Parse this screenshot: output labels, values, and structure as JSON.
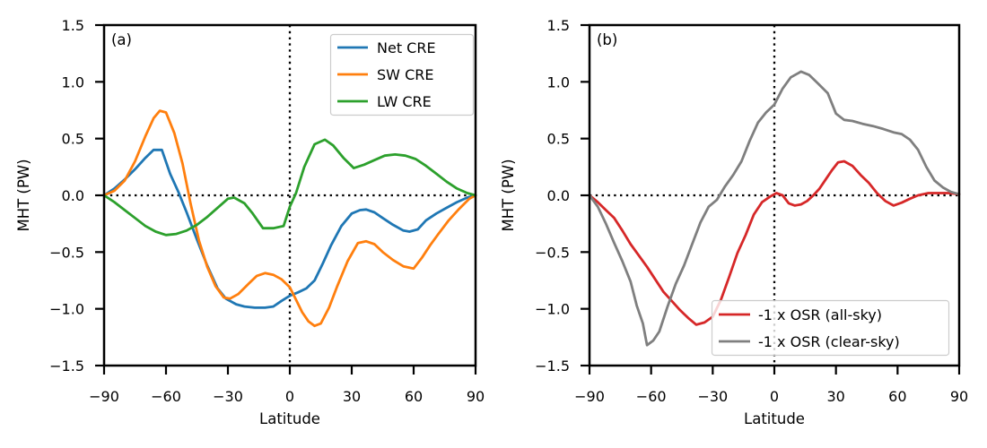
{
  "figure": {
    "background": "#ffffff",
    "frame_color": "#000000",
    "zero_line_color": "#000000",
    "legend_border_color": "#cccccc"
  },
  "chart_data": [
    {
      "type": "line",
      "panel_label": "(a)",
      "xlabel": "Latitude",
      "ylabel": "MHT (PW)",
      "xlim": [
        -90,
        90
      ],
      "ylim": [
        -1.5,
        1.5
      ],
      "grid": false,
      "zero_lines": {
        "horizontal_y": 0,
        "vertical_x": 0,
        "style": "dotted"
      },
      "legend_position": "upper right",
      "x_ticks": {
        "values": [
          -90,
          -60,
          -30,
          0,
          30,
          60,
          90
        ],
        "labels": [
          "−90",
          "−60",
          "−30",
          "0",
          "30",
          "60",
          "90"
        ]
      },
      "y_ticks": {
        "values": [
          1.5,
          1.0,
          0.5,
          0.0,
          -0.5,
          -1.0,
          -1.5
        ],
        "labels": [
          "1.5",
          "1.0",
          "0.5",
          "0.0",
          "−0.5",
          "−1.0",
          "−1.5"
        ]
      },
      "series": [
        {
          "name": "Net CRE",
          "color": "#1f77b4",
          "x": [
            -90,
            -85,
            -80,
            -75,
            -70,
            -66,
            -62,
            -58,
            -54,
            -50,
            -45,
            -40,
            -35,
            -31,
            -26,
            -22,
            -17,
            -12,
            -8,
            -4,
            0,
            4,
            8,
            12,
            16,
            20,
            25,
            30,
            34,
            37,
            41,
            45,
            50,
            55,
            58,
            62,
            66,
            71,
            76,
            81,
            86,
            90
          ],
          "y": [
            0.0,
            0.06,
            0.14,
            0.23,
            0.33,
            0.4,
            0.4,
            0.19,
            0.03,
            -0.15,
            -0.39,
            -0.62,
            -0.82,
            -0.91,
            -0.96,
            -0.98,
            -0.99,
            -0.99,
            -0.98,
            -0.93,
            -0.885,
            -0.855,
            -0.82,
            -0.75,
            -0.6,
            -0.44,
            -0.27,
            -0.16,
            -0.13,
            -0.125,
            -0.15,
            -0.2,
            -0.26,
            -0.31,
            -0.32,
            -0.3,
            -0.22,
            -0.16,
            -0.11,
            -0.06,
            -0.02,
            0.0
          ]
        },
        {
          "name": "SW CRE",
          "color": "#ff7f0e",
          "x": [
            -90,
            -85,
            -80,
            -75,
            -70,
            -66,
            -63,
            -60,
            -56,
            -52,
            -48,
            -44,
            -40,
            -36,
            -32,
            -29,
            -25,
            -20,
            -16,
            -12,
            -8,
            -4,
            0,
            3,
            6,
            9,
            12,
            15,
            19,
            23,
            28,
            33,
            37,
            41,
            45,
            50,
            55,
            60,
            64,
            68,
            72,
            77,
            82,
            87,
            90
          ],
          "y": [
            0.0,
            0.04,
            0.13,
            0.3,
            0.52,
            0.68,
            0.745,
            0.73,
            0.55,
            0.28,
            -0.08,
            -0.4,
            -0.63,
            -0.8,
            -0.9,
            -0.91,
            -0.87,
            -0.78,
            -0.71,
            -0.685,
            -0.7,
            -0.74,
            -0.81,
            -0.92,
            -1.03,
            -1.11,
            -1.15,
            -1.13,
            -0.99,
            -0.8,
            -0.58,
            -0.42,
            -0.405,
            -0.43,
            -0.5,
            -0.57,
            -0.625,
            -0.645,
            -0.55,
            -0.44,
            -0.34,
            -0.22,
            -0.12,
            -0.03,
            0.0
          ]
        },
        {
          "name": "LW CRE",
          "color": "#2ca02c",
          "x": [
            -90,
            -85,
            -80,
            -75,
            -70,
            -65,
            -60,
            -55,
            -50,
            -45,
            -40,
            -35,
            -30,
            -27,
            -22,
            -18,
            -13,
            -8,
            -3,
            0,
            3,
            7,
            12,
            17,
            21,
            26,
            31,
            36,
            41,
            46,
            51,
            56,
            61,
            66,
            71,
            76,
            81,
            86,
            90
          ],
          "y": [
            0.0,
            -0.06,
            -0.13,
            -0.2,
            -0.27,
            -0.32,
            -0.35,
            -0.34,
            -0.31,
            -0.26,
            -0.19,
            -0.11,
            -0.03,
            -0.02,
            -0.07,
            -0.16,
            -0.29,
            -0.29,
            -0.27,
            -0.1,
            0.02,
            0.25,
            0.45,
            0.49,
            0.44,
            0.33,
            0.24,
            0.27,
            0.31,
            0.35,
            0.36,
            0.35,
            0.32,
            0.26,
            0.19,
            0.12,
            0.06,
            0.02,
            0.0
          ]
        }
      ]
    },
    {
      "type": "line",
      "panel_label": "(b)",
      "xlabel": "Latitude",
      "ylabel": "MHT (PW)",
      "xlim": [
        -90,
        90
      ],
      "ylim": [
        -1.5,
        1.5
      ],
      "grid": false,
      "zero_lines": {
        "horizontal_y": 0,
        "vertical_x": 0,
        "style": "dotted"
      },
      "legend_position": "lower right",
      "x_ticks": {
        "values": [
          -90,
          -60,
          -30,
          0,
          30,
          60,
          90
        ],
        "labels": [
          "−90",
          "−60",
          "−30",
          "0",
          "30",
          "60",
          "90"
        ]
      },
      "y_ticks": {
        "values": [
          1.5,
          1.0,
          0.5,
          0.0,
          -0.5,
          -1.0,
          -1.5
        ],
        "labels": [
          "1.5",
          "1.0",
          "0.5",
          "0.0",
          "−0.5",
          "−1.0",
          "−1.5"
        ]
      },
      "series": [
        {
          "name": "-1 x OSR (all-sky)",
          "color": "#d62728",
          "x": [
            -90,
            -86,
            -82,
            -78,
            -74,
            -70,
            -66,
            -62,
            -58,
            -54,
            -50,
            -46,
            -42,
            -38,
            -34,
            -30,
            -26,
            -22,
            -18,
            -14,
            -10,
            -6,
            -2,
            1,
            4,
            7,
            10,
            13,
            16,
            19,
            22,
            25,
            28,
            31,
            34,
            38,
            42,
            46,
            50,
            54,
            58,
            62,
            66,
            70,
            75,
            80,
            85,
            90
          ],
          "y": [
            0.0,
            -0.06,
            -0.13,
            -0.2,
            -0.31,
            -0.43,
            -0.53,
            -0.63,
            -0.74,
            -0.85,
            -0.93,
            -1.01,
            -1.08,
            -1.14,
            -1.12,
            -1.07,
            -0.92,
            -0.72,
            -0.51,
            -0.35,
            -0.17,
            -0.06,
            -0.01,
            0.02,
            0.0,
            -0.07,
            -0.09,
            -0.08,
            -0.05,
            0.0,
            0.06,
            0.14,
            0.22,
            0.29,
            0.3,
            0.26,
            0.18,
            0.11,
            0.02,
            -0.05,
            -0.09,
            -0.065,
            -0.03,
            0.0,
            0.02,
            0.02,
            0.02,
            0.01
          ]
        },
        {
          "name": "-1 x OSR (clear-sky)",
          "color": "#7f7f7f",
          "x": [
            -90,
            -86,
            -82,
            -78,
            -74,
            -70,
            -67,
            -64,
            -62,
            -59,
            -56,
            -52,
            -48,
            -44,
            -40,
            -36,
            -32,
            -28,
            -24,
            -20,
            -16,
            -12,
            -8,
            -4,
            0,
            4,
            8,
            13,
            17,
            21,
            26,
            30,
            34,
            38,
            43,
            48,
            53,
            58,
            62,
            66,
            70,
            74,
            78,
            82,
            86,
            90
          ],
          "y": [
            0.0,
            -0.1,
            -0.25,
            -0.42,
            -0.58,
            -0.76,
            -0.97,
            -1.13,
            -1.32,
            -1.28,
            -1.2,
            -0.98,
            -0.78,
            -0.62,
            -0.43,
            -0.24,
            -0.1,
            -0.04,
            0.08,
            0.18,
            0.3,
            0.48,
            0.64,
            0.73,
            0.8,
            0.94,
            1.04,
            1.09,
            1.06,
            0.99,
            0.9,
            0.72,
            0.665,
            0.655,
            0.63,
            0.61,
            0.585,
            0.555,
            0.54,
            0.49,
            0.4,
            0.25,
            0.13,
            0.07,
            0.03,
            0.01
          ]
        }
      ]
    }
  ]
}
